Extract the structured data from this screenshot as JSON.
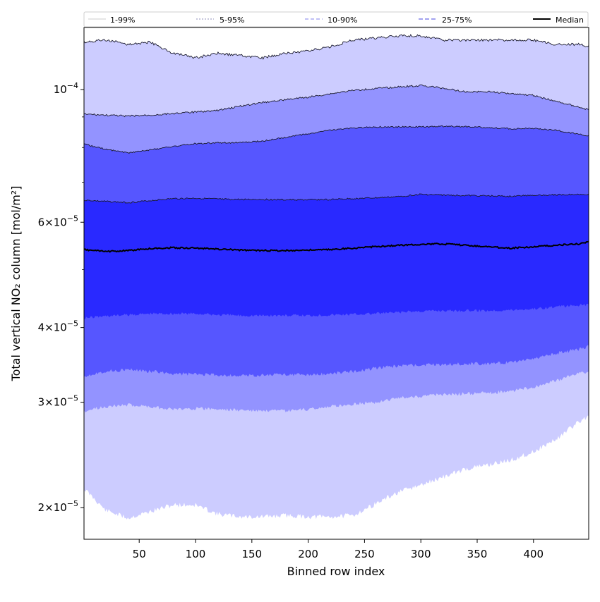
{
  "chart_data": {
    "type": "area",
    "title": "",
    "xlabel": "Binned row index",
    "ylabel": "Total vertical NO₂ column [mol/m²]",
    "xlim": [
      1,
      449
    ],
    "ylim": [
      1.77e-05,
      0.000127
    ],
    "yscale": "log",
    "x_ticks": [
      50,
      100,
      150,
      200,
      250,
      300,
      350,
      400
    ],
    "x_tick_labels": [
      "50",
      "100",
      "150",
      "200",
      "250",
      "300",
      "350",
      "400"
    ],
    "y_ticks": [
      {
        "value": 2e-05,
        "base": "2",
        "exp": "−5"
      },
      {
        "value": 3e-05,
        "base": "3",
        "exp": "−5"
      },
      {
        "value": 4e-05,
        "base": "4",
        "exp": "−5"
      },
      {
        "value": 6e-05,
        "base": "6",
        "exp": "−5"
      },
      {
        "value": 0.0001,
        "base": "",
        "exp": "−4"
      }
    ],
    "y_minor_ticks": [
      5e-05,
      7e-05,
      8e-05,
      9e-05
    ],
    "x": [
      1,
      20,
      40,
      60,
      80,
      100,
      120,
      140,
      160,
      180,
      200,
      220,
      240,
      260,
      280,
      300,
      320,
      340,
      360,
      380,
      400,
      420,
      440,
      449
    ],
    "series": [
      {
        "name": "p1",
        "values": [
          2.15e-05,
          1.98e-05,
          1.92e-05,
          1.97e-05,
          2.02e-05,
          2.02e-05,
          1.95e-05,
          1.93e-05,
          1.93e-05,
          1.94e-05,
          1.93e-05,
          1.93e-05,
          1.94e-05,
          2.03e-05,
          2.12e-05,
          2.18e-05,
          2.25e-05,
          2.32e-05,
          2.36e-05,
          2.4e-05,
          2.48e-05,
          2.6e-05,
          2.78e-05,
          2.85e-05
        ]
      },
      {
        "name": "p5",
        "values": [
          2.9e-05,
          2.95e-05,
          2.97e-05,
          2.95e-05,
          2.92e-05,
          2.93e-05,
          2.92e-05,
          2.91e-05,
          2.9e-05,
          2.9e-05,
          2.92e-05,
          2.95e-05,
          2.98e-05,
          3e-05,
          3.05e-05,
          3.07e-05,
          3.09e-05,
          3.1e-05,
          3.11e-05,
          3.13e-05,
          3.18e-05,
          3.26e-05,
          3.35e-05,
          3.38e-05
        ]
      },
      {
        "name": "p10",
        "values": [
          3.32e-05,
          3.38e-05,
          3.4e-05,
          3.38e-05,
          3.35e-05,
          3.34e-05,
          3.33e-05,
          3.32e-05,
          3.33e-05,
          3.34e-05,
          3.33e-05,
          3.35e-05,
          3.38e-05,
          3.42e-05,
          3.45e-05,
          3.46e-05,
          3.47e-05,
          3.48e-05,
          3.48e-05,
          3.5e-05,
          3.55e-05,
          3.62e-05,
          3.68e-05,
          3.72e-05
        ]
      },
      {
        "name": "p25",
        "values": [
          4.15e-05,
          4.18e-05,
          4.2e-05,
          4.22e-05,
          4.22e-05,
          4.22e-05,
          4.2e-05,
          4.19e-05,
          4.19e-05,
          4.19e-05,
          4.19e-05,
          4.2e-05,
          4.21e-05,
          4.22e-05,
          4.24e-05,
          4.26e-05,
          4.27e-05,
          4.27e-05,
          4.27e-05,
          4.28e-05,
          4.3e-05,
          4.33e-05,
          4.36e-05,
          4.37e-05
        ]
      },
      {
        "name": "median",
        "values": [
          5.4e-05,
          5.36e-05,
          5.38e-05,
          5.42e-05,
          5.44e-05,
          5.43e-05,
          5.41e-05,
          5.39e-05,
          5.38e-05,
          5.38e-05,
          5.39e-05,
          5.4e-05,
          5.43e-05,
          5.46e-05,
          5.49e-05,
          5.51e-05,
          5.52e-05,
          5.49e-05,
          5.46e-05,
          5.43e-05,
          5.46e-05,
          5.49e-05,
          5.52e-05,
          5.57e-05
        ]
      },
      {
        "name": "p75",
        "values": [
          6.53e-05,
          6.5e-05,
          6.47e-05,
          6.52e-05,
          6.57e-05,
          6.58e-05,
          6.56e-05,
          6.55e-05,
          6.55e-05,
          6.54e-05,
          6.54e-05,
          6.55e-05,
          6.57e-05,
          6.59e-05,
          6.62e-05,
          6.68e-05,
          6.66e-05,
          6.65e-05,
          6.64e-05,
          6.63e-05,
          6.66e-05,
          6.67e-05,
          6.68e-05,
          6.68e-05
        ]
      },
      {
        "name": "p90",
        "values": [
          8.1e-05,
          7.95e-05,
          7.84e-05,
          7.93e-05,
          8.03e-05,
          8.12e-05,
          8.15e-05,
          8.15e-05,
          8.2e-05,
          8.32e-05,
          8.43e-05,
          8.55e-05,
          8.62e-05,
          8.66e-05,
          8.66e-05,
          8.66e-05,
          8.68e-05,
          8.67e-05,
          8.64e-05,
          8.6e-05,
          8.61e-05,
          8.55e-05,
          8.42e-05,
          8.38e-05
        ]
      },
      {
        "name": "p95",
        "values": [
          9.1e-05,
          9.06e-05,
          9.03e-05,
          9.06e-05,
          9.12e-05,
          9.17e-05,
          9.23e-05,
          9.38e-05,
          9.52e-05,
          9.62e-05,
          9.71e-05,
          9.84e-05,
          9.97e-05,
          0.0001004,
          0.000101,
          0.0001016,
          0.0001005,
          9.91e-05,
          9.92e-05,
          9.85e-05,
          9.78e-05,
          9.55e-05,
          9.35e-05,
          9.25e-05
        ]
      },
      {
        "name": "p99",
        "values": [
          0.00012,
          0.000121,
          0.000119,
          0.00012,
          0.000115,
          0.000113,
          0.000115,
          0.000114,
          0.000113,
          0.000115,
          0.000116,
          0.000118,
          0.000121,
          0.000122,
          0.000123,
          0.000123,
          0.000121,
          0.000121,
          0.000121,
          0.000121,
          0.000121,
          0.000119,
          0.000119,
          0.000118
        ]
      }
    ],
    "bands": [
      {
        "label": "1-99%",
        "lower": "p1",
        "upper": "p99",
        "fill": "#ccccff",
        "line": "#d6d6d6",
        "dash": ""
      },
      {
        "label": "5-95%",
        "lower": "p5",
        "upper": "p95",
        "fill": "#9393ff",
        "line": "#a3a3c8",
        "dash": "2,2"
      },
      {
        "label": "10-90%",
        "lower": "p10",
        "upper": "p90",
        "fill": "#5656ff",
        "line": "#9b9bf0",
        "dash": "5,3"
      },
      {
        "label": "25-75%",
        "lower": "p25",
        "upper": "p75",
        "fill": "#2929ff",
        "line": "#6b6be6",
        "dash": "6,3"
      }
    ],
    "median_label": "Median",
    "legend_position": "top"
  }
}
